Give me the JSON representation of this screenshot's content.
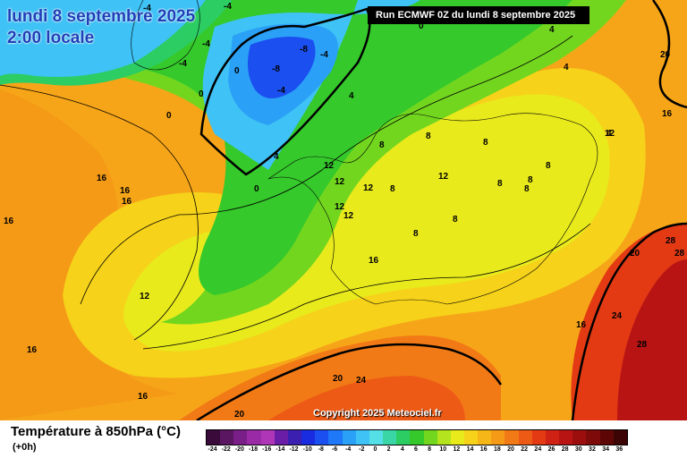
{
  "header": {
    "date_line": "lundi 8 septembre 2025",
    "time_line": "2:00 locale",
    "run_info": "Run ECMWF 0Z du lundi 8 septembre 2025"
  },
  "copyright": "Copyright 2025 Meteociel.fr",
  "footer": {
    "parameter": "Température à 850hPa (°C)",
    "lead_time": "(+0h)"
  },
  "legend": {
    "values": [
      "-24",
      "-22",
      "-20",
      "-18",
      "-16",
      "-14",
      "-12",
      "-10",
      "-8",
      "-6",
      "-4",
      "-2",
      "0",
      "2",
      "4",
      "6",
      "8",
      "10",
      "12",
      "14",
      "16",
      "18",
      "20",
      "22",
      "24",
      "26",
      "28",
      "30",
      "32",
      "34",
      "36"
    ],
    "colors": [
      "#3a0a3a",
      "#5a1660",
      "#7a1f88",
      "#9a2aa6",
      "#b036b8",
      "#6a1ea8",
      "#3b1fb0",
      "#1a2ce0",
      "#1b4ff0",
      "#1f78f7",
      "#2aa0f7",
      "#3fc2f5",
      "#55dfe6",
      "#3ad6a6",
      "#2ccd63",
      "#35c92b",
      "#72d61f",
      "#b4e41d",
      "#e8ea1c",
      "#f6d21a",
      "#f7b618",
      "#f59a17",
      "#f27a16",
      "#ec5a15",
      "#e33a14",
      "#d02214",
      "#b81414",
      "#9c0e0e",
      "#7e0a0a",
      "#5e0606",
      "#3c0404"
    ]
  },
  "map_labels": [
    {
      "text": "-4"
    },
    {
      "text": "-4"
    },
    {
      "text": "-4"
    },
    {
      "text": "-8"
    },
    {
      "text": "-8"
    },
    {
      "text": "-4"
    },
    {
      "text": "-4"
    },
    {
      "text": "-4"
    },
    {
      "text": "0"
    },
    {
      "text": "0"
    },
    {
      "text": "0"
    },
    {
      "text": "0"
    },
    {
      "text": "0"
    },
    {
      "text": "4"
    },
    {
      "text": "4"
    },
    {
      "text": "4"
    },
    {
      "text": "4"
    },
    {
      "text": "4"
    },
    {
      "text": "20"
    },
    {
      "text": "16"
    },
    {
      "text": "8"
    },
    {
      "text": "8"
    },
    {
      "text": "8"
    },
    {
      "text": "8"
    },
    {
      "text": "12"
    },
    {
      "text": "12"
    },
    {
      "text": "12"
    },
    {
      "text": "12"
    },
    {
      "text": "12"
    },
    {
      "text": "12"
    },
    {
      "text": "8"
    },
    {
      "text": "8"
    },
    {
      "text": "8"
    },
    {
      "text": "8"
    },
    {
      "text": "8"
    },
    {
      "text": "16"
    },
    {
      "text": "16"
    },
    {
      "text": "16"
    },
    {
      "text": "16"
    },
    {
      "text": "12"
    },
    {
      "text": "16"
    },
    {
      "text": "16"
    },
    {
      "text": "16"
    },
    {
      "text": "20"
    },
    {
      "text": "20"
    },
    {
      "text": "24"
    },
    {
      "text": "28"
    },
    {
      "text": "28"
    },
    {
      "text": "20"
    },
    {
      "text": "24"
    },
    {
      "text": "28"
    },
    {
      "text": "16"
    },
    {
      "text": "12"
    },
    {
      "text": "8"
    }
  ]
}
